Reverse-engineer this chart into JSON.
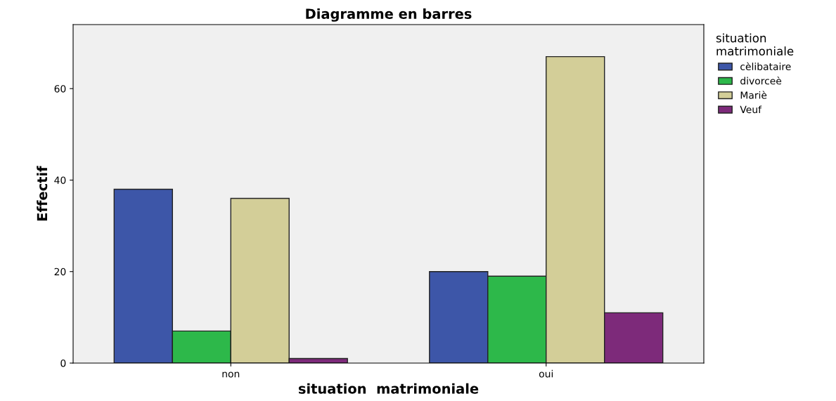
{
  "chart_data": {
    "type": "bar",
    "title": "Diagramme en barres",
    "xlabel": "situation  matrimoniale",
    "ylabel": "Effectif",
    "legend_title": "situation\nmatrimoniale",
    "categories": [
      "non",
      "oui"
    ],
    "series": [
      {
        "name": "cèlibataire",
        "color": "#3d56a8",
        "values": [
          38,
          20
        ]
      },
      {
        "name": "divorceè",
        "color": "#2db84a",
        "values": [
          7,
          19
        ]
      },
      {
        "name": "Mariè",
        "color": "#d3ce98",
        "values": [
          36,
          67
        ]
      },
      {
        "name": "Veuf",
        "color": "#7d2a7a",
        "values": [
          1,
          11
        ]
      }
    ],
    "ylim": [
      0,
      74
    ],
    "yticks": [
      0,
      20,
      40,
      60
    ],
    "grid": false,
    "legend": "right"
  }
}
